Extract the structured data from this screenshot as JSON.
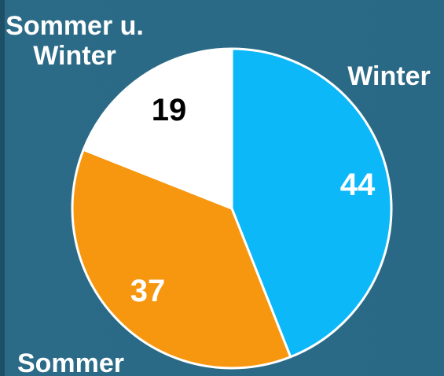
{
  "chart_data": {
    "type": "pie",
    "categories": [
      "Winter",
      "Sommer",
      "Sommer u. Winter"
    ],
    "values": [
      44,
      37,
      19
    ],
    "colors": [
      "#0db8f8",
      "#f7960f",
      "#ffffff"
    ],
    "label_colors": [
      "#ffffff",
      "#ffffff",
      "#000000"
    ]
  }
}
